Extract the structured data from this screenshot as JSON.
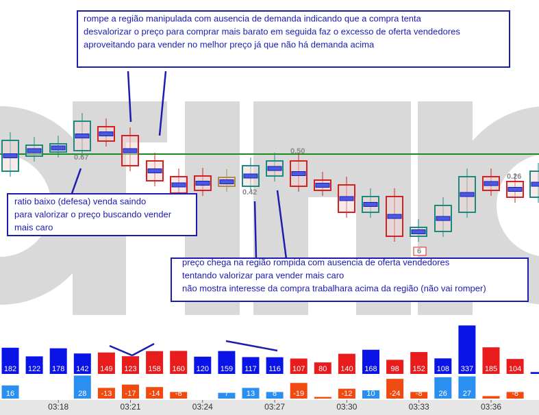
{
  "annotations": [
    {
      "lines": [
        "rompe a região manipulada com ausencia de demanda indicando que a compra tenta",
        "desvalorizar o preço para comprar mais barato em seguida faz o excesso de oferta vendedores",
        "aproveitando para vender no melhor preço já que não há demanda acima"
      ]
    },
    {
      "lines": [
        "ratio baixo (defesa) venda saindo",
        "para valorizar o preço buscando  vender",
        "mais caro"
      ]
    },
    {
      "lines": [
        "preço chega na região rompida com ausencia de oferta vendedores",
        "tentando valorizar para vender mais caro",
        "não mostra interesse da compra trabalhara acima da região (não vai romper)"
      ]
    }
  ],
  "chart_labels": [
    "0.67",
    "0.50",
    "0.42",
    "0.26",
    "6"
  ],
  "volume": {
    "values": [
      182,
      122,
      178,
      142,
      149,
      123,
      158,
      160,
      120,
      159,
      117,
      116,
      107,
      80,
      140,
      168,
      98,
      152,
      108,
      337,
      185,
      104,
      13
    ],
    "colors": [
      "#0a14e6",
      "#0a14e6",
      "#0a14e6",
      "#0a14e6",
      "#e81c1c",
      "#e81c1c",
      "#e81c1c",
      "#e81c1c",
      "#0a14e6",
      "#0a14e6",
      "#0a14e6",
      "#0a14e6",
      "#e81c1c",
      "#e81c1c",
      "#e81c1c",
      "#0a14e6",
      "#e81c1c",
      "#e81c1c",
      "#0a14e6",
      "#0a14e6",
      "#e81c1c",
      "#e81c1c",
      "#0a14e6"
    ]
  },
  "delta": {
    "values": [
      16,
      0,
      0,
      28,
      -13,
      -17,
      -14,
      -8,
      0,
      7,
      13,
      8,
      -19,
      -2,
      -12,
      10,
      -24,
      -8,
      26,
      27,
      -3,
      -8,
      0
    ],
    "positive_color": "#2a8ff0",
    "negative_color": "#f04a10"
  },
  "time_labels": [
    "03:18",
    "03:21",
    "03:24",
    "03:27",
    "03:30",
    "03:33",
    "03:36"
  ]
}
